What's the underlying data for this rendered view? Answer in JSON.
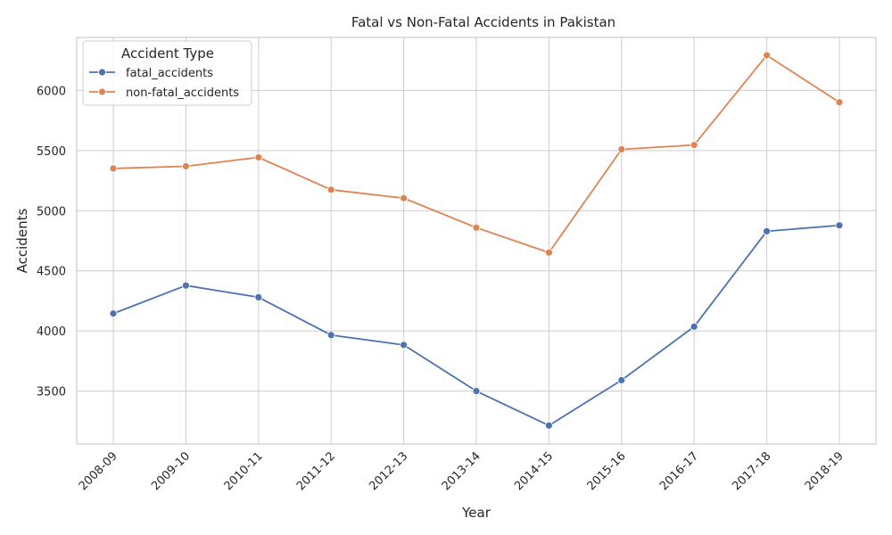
{
  "chart_data": {
    "type": "line",
    "title": "Fatal vs Non-Fatal Accidents in Pakistan",
    "xlabel": "Year",
    "ylabel": "Accidents",
    "categories": [
      "2008-09",
      "2009-10",
      "2010-11",
      "2011-12",
      "2012-13",
      "2013-14",
      "2014-15",
      "2015-16",
      "2016-17",
      "2017-18",
      "2018-19"
    ],
    "ylim": [
      3060,
      6440
    ],
    "yticks": [
      3500,
      4000,
      4500,
      5000,
      5500,
      6000
    ],
    "grid": true,
    "legend": {
      "title": "Accident Type",
      "placement": "top-left"
    },
    "series": [
      {
        "name": "fatal_accidents",
        "color": "#4c72b0",
        "values": [
          4145,
          4378,
          4280,
          3966,
          3884,
          3500,
          3214,
          3591,
          4036,
          4829,
          4878
        ]
      },
      {
        "name": "non-fatal_accidents",
        "color": "#dd8452",
        "values": [
          5351,
          5369,
          5443,
          5174,
          5104,
          4859,
          4652,
          5510,
          5546,
          6292,
          5901
        ]
      }
    ]
  }
}
